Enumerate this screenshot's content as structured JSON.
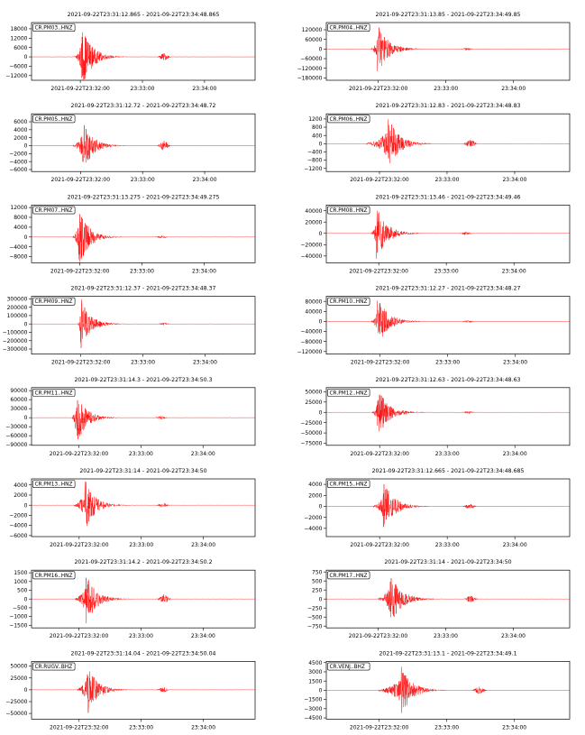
{
  "chart_data": [
    {
      "type": "line",
      "station": "CR.PM03..HNZ",
      "time_range": "2021-09-22T23:31:12.865  -  2021-09-22T23:34:48.865",
      "start_offset_s": 12.865,
      "duration_s": 216,
      "peak_time_s": 49,
      "onset_s": 41,
      "second_peak_s": 128,
      "second_amp_ratio": 0.12,
      "ylim": [
        -15000,
        22000
      ],
      "yticks": [
        18000,
        12000,
        6000,
        0,
        -6000,
        -12000
      ],
      "ytick_labels": [
        "18000",
        "12000",
        "6000",
        "0",
        "−6000",
        "−12000"
      ],
      "peak_amplitude": 20000,
      "xticks": [
        "2021-09-22T23:32:00",
        "23:33:00",
        "23:34:00"
      ],
      "color": "#ff0000"
    },
    {
      "type": "line",
      "station": "CR.PM04..HNZ",
      "time_range": "2021-09-22T23:31:13.85  -  2021-09-22T23:34:49.85",
      "start_offset_s": 13.85,
      "duration_s": 216,
      "peak_time_s": 46,
      "onset_s": 40,
      "second_peak_s": 125,
      "second_amp_ratio": 0.05,
      "ylim": [
        -195000,
        165000
      ],
      "yticks": [
        120000,
        60000,
        0,
        -60000,
        -120000,
        -180000
      ],
      "ytick_labels": [
        "120000",
        "60000",
        "0",
        "−60000",
        "−120000",
        "−180000"
      ],
      "peak_amplitude": 150000,
      "xticks": [
        "2021-09-22T23:32:00",
        "23:33:00",
        "23:34:00"
      ],
      "color": "#ff0000"
    },
    {
      "type": "line",
      "station": "CR.PM05..HNZ",
      "time_range": "2021-09-22T23:31:12.72  -  2021-09-22T23:34:48.72",
      "start_offset_s": 12.72,
      "duration_s": 216,
      "peak_time_s": 50,
      "onset_s": 40,
      "second_peak_s": 128,
      "second_amp_ratio": 0.2,
      "ylim": [
        -6500,
        8000
      ],
      "yticks": [
        6000,
        4000,
        2000,
        0,
        -2000,
        -4000,
        -6000
      ],
      "ytick_labels": [
        "6000",
        "4000",
        "2000",
        "0",
        "−2000",
        "−4000",
        "−6000"
      ],
      "peak_amplitude": 6500,
      "xticks": [
        "2021-09-22T23:32:00",
        "23:33:00",
        "23:34:00"
      ],
      "color": "#ff0000"
    },
    {
      "type": "line",
      "station": "CR.PM06..HNZ",
      "time_range": "2021-09-22T23:31:12.83  -  2021-09-22T23:34:48.83",
      "start_offset_s": 12.83,
      "duration_s": 216,
      "peak_time_s": 55,
      "onset_s": 36,
      "second_peak_s": 128,
      "second_amp_ratio": 0.15,
      "ylim": [
        -1350,
        1450
      ],
      "yticks": [
        1200,
        800,
        400,
        0,
        -400,
        -800,
        -1200
      ],
      "ytick_labels": [
        "1200",
        "800",
        "400",
        "0",
        "−400",
        "−800",
        "−1200"
      ],
      "peak_amplitude": 1300,
      "xticks": [
        "2021-09-22T23:32:00",
        "23:33:00",
        "23:34:00"
      ],
      "color": "#ff0000"
    },
    {
      "type": "line",
      "station": "CR.PM07..HNZ",
      "time_range": "2021-09-22T23:31:13.275  -  2021-09-22T23:34:49.275",
      "start_offset_s": 13.275,
      "duration_s": 216,
      "peak_time_s": 46,
      "onset_s": 40,
      "second_peak_s": 126,
      "second_amp_ratio": 0.05,
      "ylim": [
        -10500,
        13000
      ],
      "yticks": [
        12000,
        8000,
        4000,
        0,
        -4000,
        -8000
      ],
      "ytick_labels": [
        "12000",
        "8000",
        "4000",
        "0",
        "−4000",
        "−8000"
      ],
      "peak_amplitude": 12000,
      "xticks": [
        "2021-09-22T23:32:00",
        "23:33:00",
        "23:34:00"
      ],
      "color": "#ff0000"
    },
    {
      "type": "line",
      "station": "CR.PM08..HNZ",
      "time_range": "2021-09-22T23:31:13.46  -  2021-09-22T23:34:49.46",
      "start_offset_s": 13.46,
      "duration_s": 216,
      "peak_time_s": 45,
      "onset_s": 40,
      "second_peak_s": 124,
      "second_amp_ratio": 0.06,
      "ylim": [
        -52000,
        50000
      ],
      "yticks": [
        40000,
        20000,
        0,
        -20000,
        -40000
      ],
      "ytick_labels": [
        "40000",
        "20000",
        "0",
        "−20000",
        "−40000"
      ],
      "peak_amplitude": 46000,
      "xticks": [
        "2021-09-22T23:32:00",
        "23:33:00",
        "23:34:00"
      ],
      "color": "#ff0000"
    },
    {
      "type": "line",
      "station": "CR.PM09..HNZ",
      "time_range": "2021-09-22T23:31:12.37  -  2021-09-22T23:34:48.37",
      "start_offset_s": 12.37,
      "duration_s": 216,
      "peak_time_s": 48,
      "onset_s": 44,
      "second_peak_s": 128,
      "second_amp_ratio": 0.05,
      "ylim": [
        -360000,
        330000
      ],
      "yticks": [
        300000,
        200000,
        100000,
        0,
        -100000,
        -200000,
        -300000
      ],
      "ytick_labels": [
        "300000",
        "200000",
        "100000",
        "0",
        "−100000",
        "−200000",
        "−300000"
      ],
      "peak_amplitude": 300000,
      "xticks": [
        "2021-09-22T23:32:00",
        "23:33:00",
        "23:34:00"
      ],
      "color": "#ff0000"
    },
    {
      "type": "line",
      "station": "CR.PM10..HNZ",
      "time_range": "2021-09-22T23:31:12.27  -  2021-09-22T23:34:48.27",
      "start_offset_s": 12.27,
      "duration_s": 216,
      "peak_time_s": 46,
      "onset_s": 40,
      "second_peak_s": 126,
      "second_amp_ratio": 0.05,
      "ylim": [
        -130000,
        100000
      ],
      "yticks": [
        80000,
        40000,
        0,
        -40000,
        -80000,
        -120000
      ],
      "ytick_labels": [
        "80000",
        "40000",
        "0",
        "−40000",
        "−80000",
        "−120000"
      ],
      "peak_amplitude": 95000,
      "xticks": [
        "2021-09-22T23:32:00",
        "23:33:00",
        "23:34:00"
      ],
      "color": "#ff0000"
    },
    {
      "type": "line",
      "station": "CR.PM11..HNZ",
      "time_range": "2021-09-22T23:31:14.3  -  2021-09-22T23:34:50.3",
      "start_offset_s": 14.3,
      "duration_s": 216,
      "peak_time_s": 43,
      "onset_s": 39,
      "second_peak_s": 125,
      "second_amp_ratio": 0.06,
      "ylim": [
        -92000,
        100000
      ],
      "yticks": [
        90000,
        60000,
        30000,
        0,
        -30000,
        -60000,
        -90000
      ],
      "ytick_labels": [
        "90000",
        "60000",
        "30000",
        "0",
        "−30000",
        "−60000",
        "−90000"
      ],
      "peak_amplitude": 95000,
      "xticks": [
        "2021-09-22T23:32:00",
        "23:33:00",
        "23:34:00"
      ],
      "color": "#ff0000"
    },
    {
      "type": "line",
      "station": "CR.PM12..HNZ",
      "time_range": "2021-09-22T23:31:12.63  -  2021-09-22T23:34:48.63",
      "start_offset_s": 12.63,
      "duration_s": 216,
      "peak_time_s": 46,
      "onset_s": 41,
      "second_peak_s": 126,
      "second_amp_ratio": 0.05,
      "ylim": [
        -80000,
        60000
      ],
      "yticks": [
        50000,
        25000,
        0,
        -25000,
        -50000,
        -75000
      ],
      "ytick_labels": [
        "50000",
        "25000",
        "0",
        "−25000",
        "−50000",
        "−75000"
      ],
      "peak_amplitude": 60000,
      "xticks": [
        "2021-09-22T23:32:00",
        "23:33:00",
        "23:34:00"
      ],
      "color": "#ff0000"
    },
    {
      "type": "line",
      "station": "CR.PM13..HNZ",
      "time_range": "2021-09-22T23:31:14  -  2021-09-22T23:34:50",
      "start_offset_s": 14,
      "duration_s": 216,
      "peak_time_s": 52,
      "onset_s": 41,
      "second_peak_s": 127,
      "second_amp_ratio": 0.1,
      "ylim": [
        -6200,
        5200
      ],
      "yticks": [
        4000,
        2000,
        0,
        -2000,
        -4000,
        -6000
      ],
      "ytick_labels": [
        "4000",
        "2000",
        "0",
        "−2000",
        "−4000",
        "−6000"
      ],
      "peak_amplitude": 5000,
      "xticks": [
        "2021-09-22T23:32:00",
        "23:33:00",
        "23:34:00"
      ],
      "color": "#ff0000"
    },
    {
      "type": "line",
      "station": "CR.PM15..HNZ",
      "time_range": "2021-09-22T23:31:12.665  -  2021-09-22T23:34:48.685",
      "start_offset_s": 12.665,
      "duration_s": 216,
      "peak_time_s": 51,
      "onset_s": 42,
      "second_peak_s": 127,
      "second_amp_ratio": 0.1,
      "ylim": [
        -5500,
        5000
      ],
      "yticks": [
        4000,
        2000,
        0,
        -2000,
        -4000
      ],
      "ytick_labels": [
        "4000",
        "2000",
        "0",
        "−2000",
        "−4000"
      ],
      "peak_amplitude": 4700,
      "xticks": [
        "2021-09-22T23:32:00",
        "23:33:00",
        "23:34:00"
      ],
      "color": "#ff0000"
    },
    {
      "type": "line",
      "station": "CR.PM16..HNZ",
      "time_range": "2021-09-22T23:31:14.2  -  2021-09-22T23:34:50.2",
      "start_offset_s": 14.2,
      "duration_s": 216,
      "peak_time_s": 53,
      "onset_s": 42,
      "second_peak_s": 128,
      "second_amp_ratio": 0.18,
      "ylim": [
        -1650,
        1650
      ],
      "yticks": [
        1500,
        1000,
        500,
        0,
        -500,
        -1000,
        -1500
      ],
      "ytick_labels": [
        "1500",
        "1000",
        "500",
        "0",
        "−500",
        "−1000",
        "−1500"
      ],
      "peak_amplitude": 1500,
      "xticks": [
        "2021-09-22T23:32:00",
        "23:33:00",
        "23:34:00"
      ],
      "color": "#ff0000"
    },
    {
      "type": "line",
      "station": "CR.PM17..HNZ",
      "time_range": "2021-09-22T23:31:14  -  2021-09-22T23:34:50",
      "start_offset_s": 14,
      "duration_s": 216,
      "peak_time_s": 57,
      "onset_s": 46,
      "second_peak_s": 128,
      "second_amp_ratio": 0.12,
      "ylim": [
        -800,
        800
      ],
      "yticks": [
        750,
        500,
        250,
        0,
        -250,
        -500,
        -750
      ],
      "ytick_labels": [
        "750",
        "500",
        "250",
        "0",
        "−250",
        "−500",
        "−750"
      ],
      "peak_amplitude": 750,
      "xticks": [
        "2021-09-22T23:32:00",
        "23:33:00",
        "23:34:00"
      ],
      "color": "#ff0000"
    },
    {
      "type": "line",
      "station": "CR.RUGV..BHZ",
      "time_range": "2021-09-22T23:31:14.04  -  2021-09-22T23:34:50.04",
      "start_offset_s": 14.04,
      "duration_s": 216,
      "peak_time_s": 54,
      "onset_s": 44,
      "second_peak_s": 127,
      "second_amp_ratio": 0.1,
      "ylim": [
        -62000,
        60000
      ],
      "yticks": [
        50000,
        25000,
        0,
        -25000,
        -50000
      ],
      "ytick_labels": [
        "50000",
        "25000",
        "0",
        "−25000",
        "−50000"
      ],
      "peak_amplitude": 55000,
      "xticks": [
        "2021-09-22T23:32:00",
        "23:33:00",
        "23:34:00"
      ],
      "color": "#ff0000"
    },
    {
      "type": "line",
      "station": "CR.VENJ..BHZ",
      "time_range": "2021-09-22T23:31:13.1  -  2021-09-22T23:34:49.1",
      "start_offset_s": 13.1,
      "duration_s": 216,
      "peak_time_s": 67,
      "onset_s": 46,
      "second_peak_s": 136,
      "second_amp_ratio": 0.15,
      "ylim": [
        -4700,
        4700
      ],
      "yticks": [
        4500,
        3000,
        1500,
        0,
        -1500,
        -3000,
        -4500
      ],
      "ytick_labels": [
        "4500",
        "3000",
        "1500",
        "0",
        "−1500",
        "−3000",
        "−4500"
      ],
      "peak_amplitude": 4000,
      "xticks": [
        "2021-09-22T23:32:00",
        "23:33:00",
        "23:34:00"
      ],
      "color": "#ff0000"
    }
  ]
}
